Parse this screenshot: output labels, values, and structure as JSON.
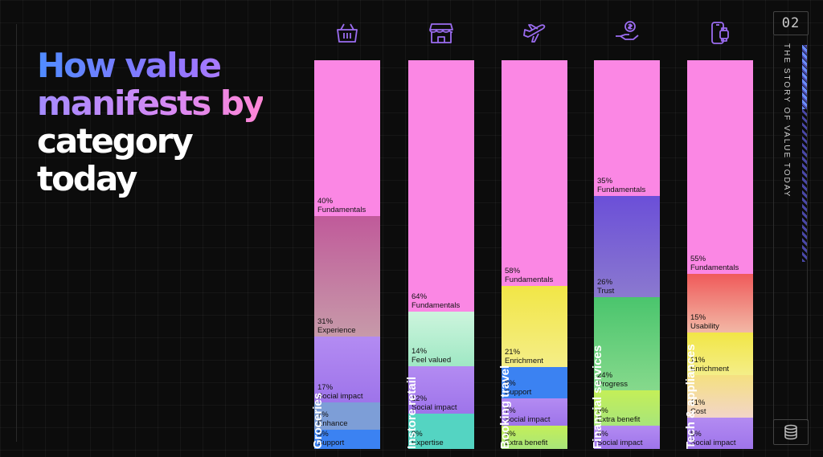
{
  "title": {
    "line1": "How value",
    "line2": "manifests by",
    "line3": "category",
    "line4": "today"
  },
  "side": {
    "page": "02",
    "vertical_text": "THE STORY OF VALUE TODAY"
  },
  "colors": {
    "Fundamentals": "#fb87e4",
    "Experience": "linear-gradient(180deg,#c05a9a 0%,#c79aa9 100%)",
    "Social impact": "linear-gradient(180deg,#b38bf2 0%,#9e74ea 100%)",
    "Enhance": "#7d9ed7",
    "Support": "#3b82f2",
    "Feel valued": "linear-gradient(180deg,#cdf5dd 0%,#9fe8c4 100%)",
    "Expertise": "#54d4c2",
    "Enrichment": "linear-gradient(180deg,#f2e646 0%,#f4ee88 100%)",
    "Extra benefit": "linear-gradient(180deg,#c4ef58 0%,#a8e57a 100%)",
    "Trust": "linear-gradient(180deg,#6b4fd8 0%,#8b79cf 100%)",
    "Progress": "linear-gradient(180deg,#4ac56d 0%,#86d98c 100%)",
    "Usability": "linear-gradient(180deg,#ef5a5a 0%,#f2b8a6 100%)",
    "Cost": "linear-gradient(180deg,#f5e080 0%,#f2d5c8 100%)"
  },
  "chart_data": {
    "type": "bar",
    "stacked": true,
    "categories": [
      "Groceries",
      "Instore retail",
      "Booking travel",
      "Financial services",
      "Tech & appliances"
    ],
    "icons": [
      "grocery-basket-icon",
      "storefront-icon",
      "airplane-icon",
      "money-hand-icon",
      "smartphone-watch-icon"
    ],
    "columns": [
      {
        "category": "Groceries",
        "segments": [
          {
            "name": "Fundamentals",
            "value": 40,
            "label": "40%"
          },
          {
            "name": "Experience",
            "value": 31,
            "label": "31%"
          },
          {
            "name": "Social impact",
            "value": 17,
            "label": "17%"
          },
          {
            "name": "Enhance",
            "value": 7,
            "label": "7%"
          },
          {
            "name": "Support",
            "value": 5,
            "label": "5%"
          }
        ]
      },
      {
        "category": "Instore retail",
        "segments": [
          {
            "name": "Fundamentals",
            "value": 64,
            "label": "64%"
          },
          {
            "name": "Feel valued",
            "value": 14,
            "label": "14%"
          },
          {
            "name": "Social impact",
            "value": 12,
            "label": "12%"
          },
          {
            "name": "Expertise",
            "value": 9,
            "label": "9%"
          }
        ]
      },
      {
        "category": "Booking travel",
        "segments": [
          {
            "name": "Fundamentals",
            "value": 58,
            "label": "58%"
          },
          {
            "name": "Enrichment",
            "value": 21,
            "label": "21%"
          },
          {
            "name": "Support",
            "value": 8,
            "label": "8%"
          },
          {
            "name": "Social impact",
            "value": 7,
            "label": "7%"
          },
          {
            "name": "Extra benefit",
            "value": 6,
            "label": "6%"
          }
        ]
      },
      {
        "category": "Financial services",
        "segments": [
          {
            "name": "Fundamentals",
            "value": 35,
            "label": "35%"
          },
          {
            "name": "Trust",
            "value": 26,
            "label": "26%"
          },
          {
            "name": "Progress",
            "value": 24,
            "label": "24%"
          },
          {
            "name": "Extra benefit",
            "value": 9,
            "label": "9%"
          },
          {
            "name": "Social impact",
            "value": 6,
            "label": "6%"
          }
        ]
      },
      {
        "category": "Tech & appliances",
        "segments": [
          {
            "name": "Fundamentals",
            "value": 55,
            "label": "55%"
          },
          {
            "name": "Usability",
            "value": 15,
            "label": "15%"
          },
          {
            "name": "Enrichment",
            "value": 11,
            "label": "11%"
          },
          {
            "name": "Cost",
            "value": 11,
            "label": "11%"
          },
          {
            "name": "Social impact",
            "value": 8,
            "label": "8%"
          }
        ]
      }
    ]
  }
}
